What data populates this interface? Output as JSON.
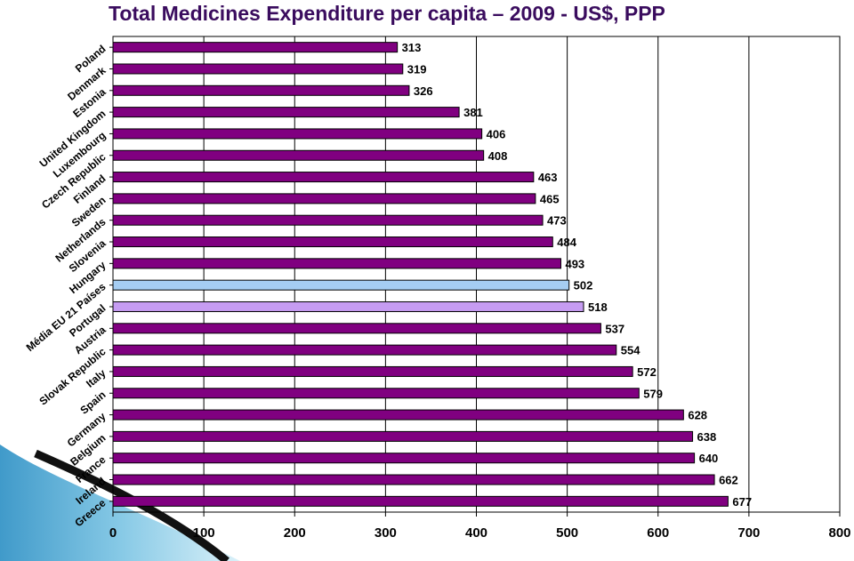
{
  "chart_data": {
    "type": "bar",
    "orientation": "horizontal",
    "title": "Total Medicines Expenditure per capita – 2009 - US$, PPP",
    "categories": [
      "Poland",
      "Denmark",
      "Estonia",
      "United Kingdom",
      "Luxembourg",
      "Czech Republic",
      "Finland",
      "Sweden",
      "Netherlands",
      "Slovenia",
      "Hungary",
      "Média EU 21 Países",
      "Portugal",
      "Austria",
      "Slovak Republic",
      "Italy",
      "Spain",
      "Germany",
      "Belgium",
      "France",
      "Ireland",
      "Greece"
    ],
    "values": [
      313,
      319,
      326,
      381,
      406,
      408,
      463,
      465,
      473,
      484,
      493,
      502,
      518,
      537,
      554,
      572,
      579,
      628,
      638,
      640,
      662,
      677
    ],
    "xlim": [
      0,
      800
    ],
    "xticks": [
      0,
      100,
      200,
      300,
      400,
      500,
      600,
      700,
      800
    ],
    "grid": "vertical",
    "legend": "none",
    "colors": {
      "bar": "#800080",
      "bar_border": "#000000",
      "highlight_values": {
        "502": "#a5cdf3",
        "518": "#c69cf2"
      }
    }
  }
}
